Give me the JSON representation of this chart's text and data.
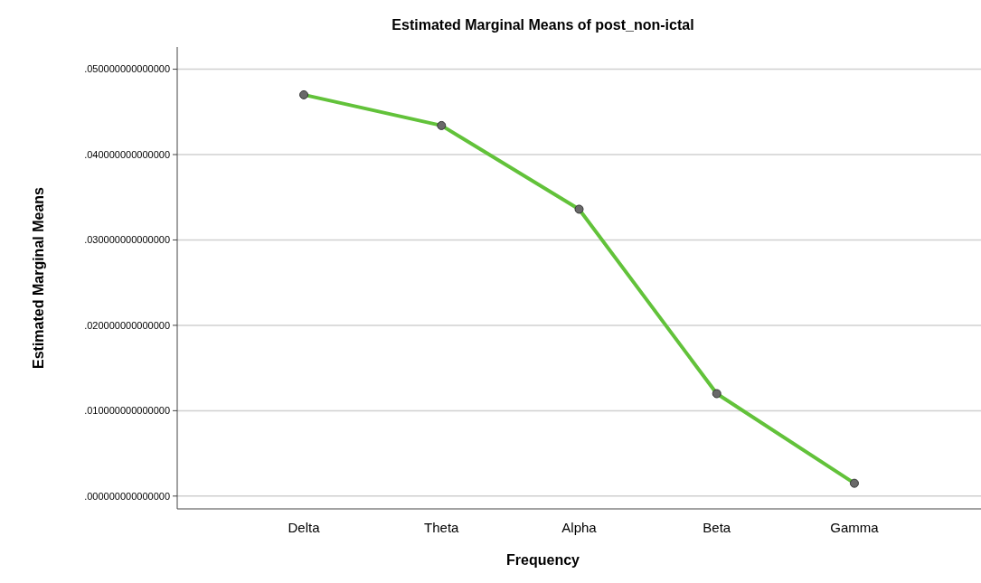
{
  "chart_data": {
    "type": "line",
    "title": "Estimated Marginal Means of post_non-ictal",
    "xlabel": "Frequency",
    "ylabel": "Estimated Marginal Means",
    "categories": [
      "Delta",
      "Theta",
      "Alpha",
      "Beta",
      "Gamma"
    ],
    "series": [
      {
        "color": "#62c23a",
        "values": [
          0.047,
          0.0434,
          0.0336,
          0.012,
          0.0015
        ]
      }
    ],
    "ylim": [
      -0.0015,
      0.0526
    ],
    "yticks": [
      {
        "value": 0,
        "label": ".000000000000000"
      },
      {
        "value": 0.01,
        "label": ".010000000000000"
      },
      {
        "value": 0.02,
        "label": ".020000000000000"
      },
      {
        "value": 0.03,
        "label": ".030000000000000"
      },
      {
        "value": 0.04,
        "label": ".040000000000000"
      },
      {
        "value": 0.05,
        "label": ".050000000000000"
      }
    ],
    "grid": "y",
    "marker": "circle",
    "line_style": "solid"
  }
}
